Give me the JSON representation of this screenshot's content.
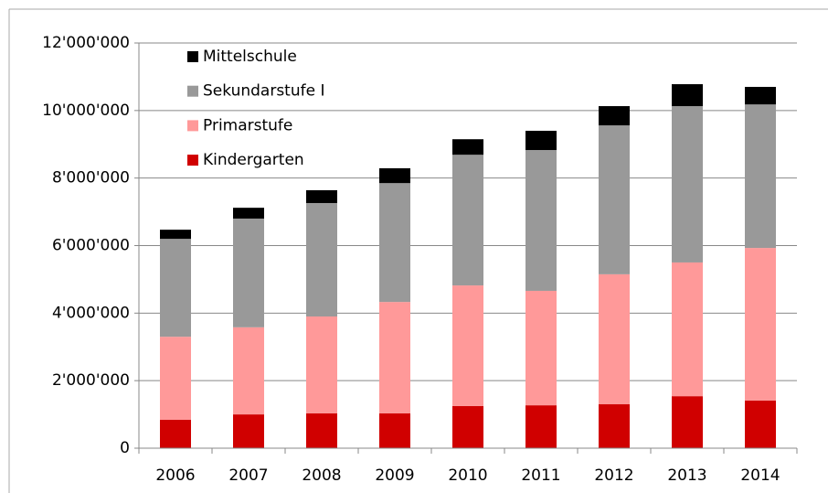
{
  "chart_data": {
    "type": "stacked-bar",
    "categories": [
      "2006",
      "2007",
      "2008",
      "2009",
      "2010",
      "2011",
      "2012",
      "2013",
      "2014"
    ],
    "series": [
      {
        "name": "Kindergarten",
        "color": "#d00000",
        "values": [
          840000,
          1000000,
          1030000,
          1030000,
          1250000,
          1270000,
          1300000,
          1540000,
          1410000
        ]
      },
      {
        "name": "Primarstufe",
        "color": "#ff9999",
        "values": [
          2460000,
          2580000,
          2870000,
          3300000,
          3570000,
          3390000,
          3850000,
          3960000,
          4520000
        ]
      },
      {
        "name": "Sekundarstufe I",
        "color": "#999999",
        "values": [
          2900000,
          3220000,
          3360000,
          3520000,
          3870000,
          4170000,
          4410000,
          4630000,
          4250000
        ]
      },
      {
        "name": "Mittelschule",
        "color": "#000000",
        "values": [
          270000,
          320000,
          380000,
          440000,
          460000,
          570000,
          570000,
          650000,
          520000
        ]
      }
    ],
    "ylim": [
      0,
      12000000
    ],
    "yticks": [
      0,
      {
        "value": 2000000,
        "label": "2'000'000"
      },
      {
        "value": 4000000,
        "label": "4'000'000"
      },
      {
        "value": 6000000,
        "label": "6'000'000"
      },
      {
        "value": 8000000,
        "label": "8'000'000"
      },
      {
        "value": 10000000,
        "label": "10'000'000"
      },
      {
        "value": 12000000,
        "label": "12'000'000"
      }
    ],
    "grid": true,
    "legend": "top-left"
  }
}
